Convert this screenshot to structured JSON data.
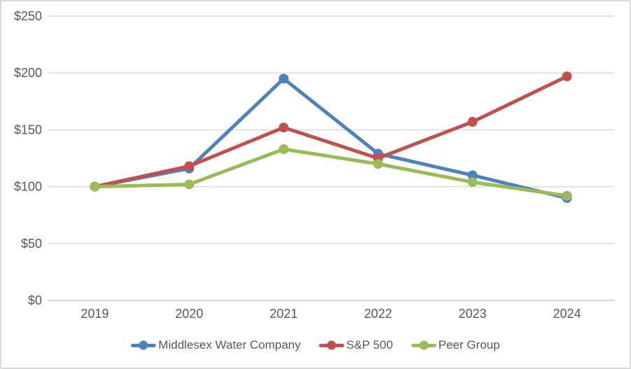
{
  "chart_data": {
    "type": "line",
    "title": "",
    "xlabel": "",
    "ylabel": "",
    "categories": [
      "2019",
      "2020",
      "2021",
      "2022",
      "2023",
      "2024"
    ],
    "series": [
      {
        "name": "Middlesex Water Company",
        "color": "#4F81BD",
        "values": [
          100,
          116,
          195,
          129,
          110,
          90
        ]
      },
      {
        "name": "S&P 500",
        "color": "#C0504D",
        "values": [
          100,
          118,
          152,
          125,
          157,
          197
        ]
      },
      {
        "name": "Peer Group",
        "color": "#9BBB59",
        "values": [
          100,
          102,
          133,
          120,
          104,
          92
        ]
      }
    ],
    "ylim": [
      0,
      250
    ],
    "y_tick_step": 50,
    "y_tick_labels": [
      "$0",
      "$50",
      "$100",
      "$150",
      "$200",
      "$250"
    ],
    "grid": true,
    "legend_position": "bottom",
    "colors": {
      "background": "#FFFFFF",
      "border": "#D9D9D9",
      "gridline": "#D9D9D9",
      "axis_line": "#C6C6C6",
      "tick_text": "#595959"
    }
  }
}
